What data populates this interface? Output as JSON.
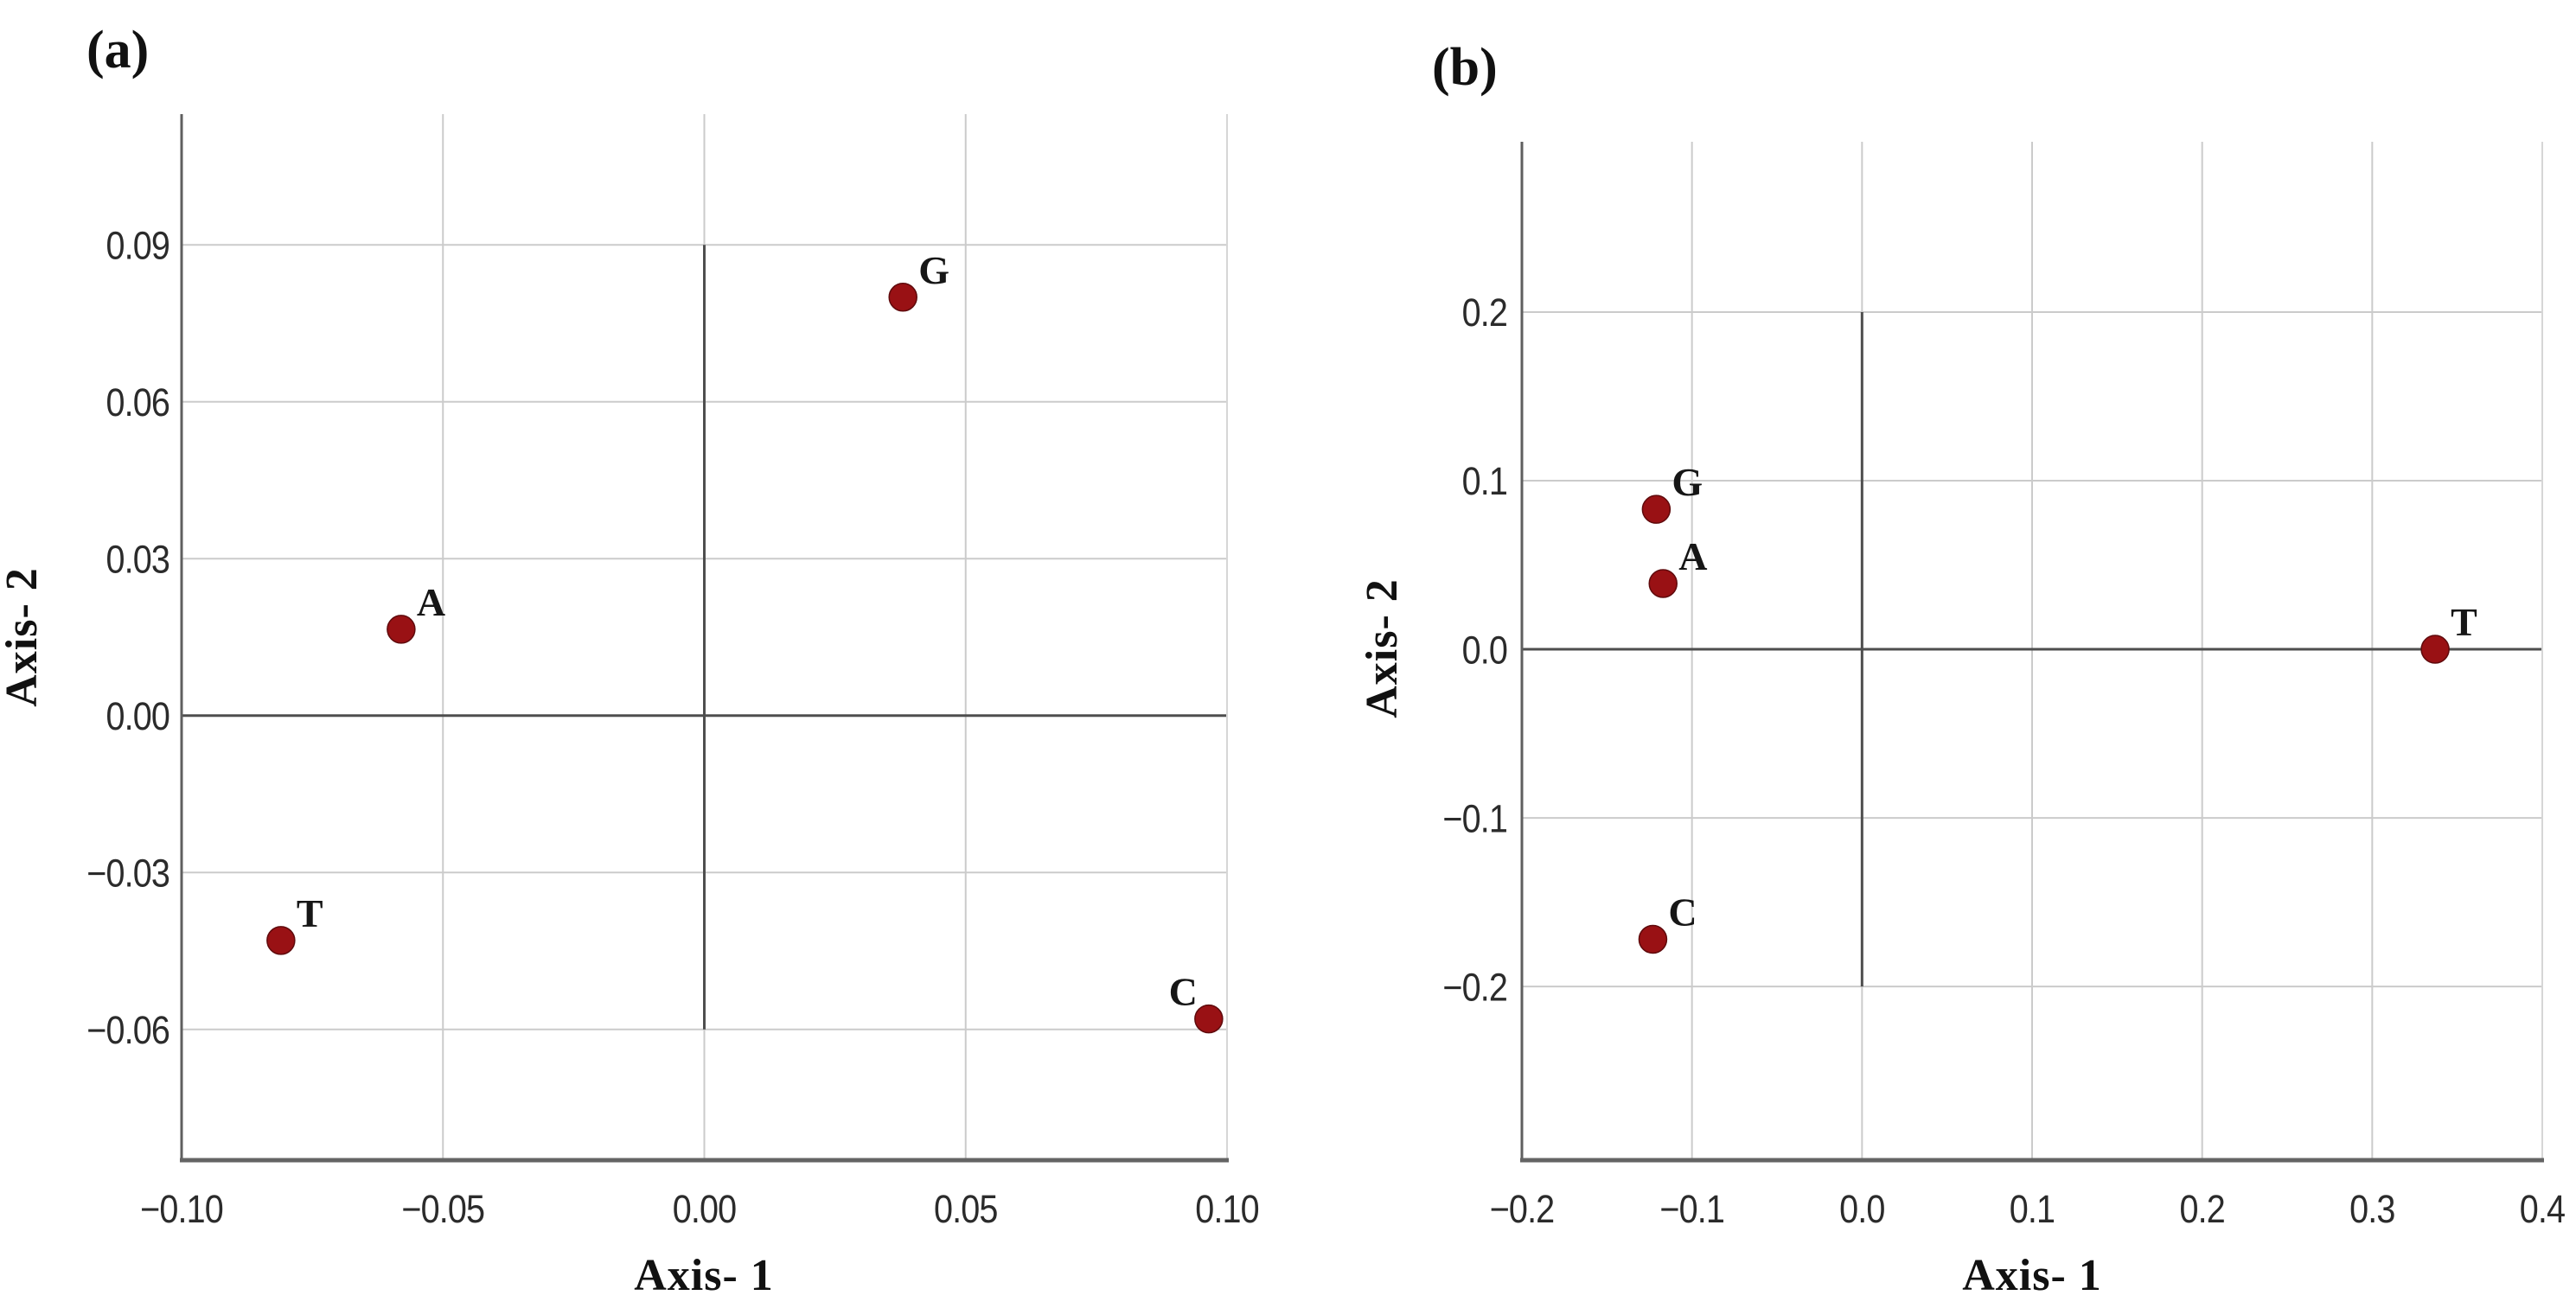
{
  "page": {
    "background": "#ffffff",
    "description": "Two-panel scatter figure of nucleotide positions on Axis-1 vs Axis-2"
  },
  "colors": {
    "marker_fill": "#991114",
    "marker_edge": "#5f0a0c",
    "gridline": "#cbcbcb",
    "frame_light": "#d6d6d6",
    "frame_dark": "#5f5f5f",
    "axis_bottom": "#646464",
    "reference_line": "#4e4e4e",
    "tick_text": "#2b2b2b",
    "label_text": "#111111"
  },
  "chart_data": [
    {
      "type": "scatter",
      "panel_tag": "(a)",
      "title": "",
      "xlabel": "Axis- 1",
      "ylabel": "Axis- 2",
      "xlim": [
        -0.1,
        0.1
      ],
      "ylim": [
        -0.085,
        0.115
      ],
      "grid": true,
      "legend": "none",
      "xticks": [
        {
          "v": -0.1,
          "label": "−0.10"
        },
        {
          "v": -0.05,
          "label": "−0.05"
        },
        {
          "v": 0.0,
          "label": "0.00"
        },
        {
          "v": 0.05,
          "label": "0.05"
        },
        {
          "v": 0.1,
          "label": "0.10"
        }
      ],
      "yticks": [
        {
          "v": 0.09,
          "label": "0.09"
        },
        {
          "v": 0.06,
          "label": "0.06"
        },
        {
          "v": 0.03,
          "label": "0.03"
        },
        {
          "v": 0.0,
          "label": "0.00"
        },
        {
          "v": -0.03,
          "label": "−0.03"
        },
        {
          "v": -0.06,
          "label": "−0.06"
        }
      ],
      "reference_line_x": {
        "x": 0.0,
        "y_from": 0.09,
        "y_to": -0.06
      },
      "reference_line_y": {
        "y": 0.0
      },
      "points": [
        {
          "label": "G",
          "x": 0.038,
          "y": 0.08,
          "label_pos": "up-right"
        },
        {
          "label": "A",
          "x": -0.058,
          "y": 0.0165,
          "label_pos": "up-right"
        },
        {
          "label": "T",
          "x": -0.081,
          "y": -0.043,
          "label_pos": "up-right"
        },
        {
          "label": "C",
          "x": 0.0965,
          "y": -0.058,
          "label_pos": "up-left"
        }
      ]
    },
    {
      "type": "scatter",
      "panel_tag": "(b)",
      "title": "",
      "xlabel": "Axis- 1",
      "ylabel": "Axis- 2",
      "xlim": [
        -0.2,
        0.4
      ],
      "ylim": [
        -0.303,
        0.301
      ],
      "grid": true,
      "legend": "none",
      "xticks": [
        {
          "v": -0.2,
          "label": "−0.2"
        },
        {
          "v": -0.1,
          "label": "−0.1"
        },
        {
          "v": 0.0,
          "label": "0.0"
        },
        {
          "v": 0.1,
          "label": "0.1"
        },
        {
          "v": 0.2,
          "label": "0.2"
        },
        {
          "v": 0.3,
          "label": "0.3"
        },
        {
          "v": 0.4,
          "label": "0.4"
        }
      ],
      "yticks": [
        {
          "v": 0.2,
          "label": "0.2"
        },
        {
          "v": 0.1,
          "label": "0.1"
        },
        {
          "v": 0.0,
          "label": "0.0"
        },
        {
          "v": -0.1,
          "label": "−0.1"
        },
        {
          "v": -0.2,
          "label": "−0.2"
        }
      ],
      "reference_line_x": {
        "x": 0.0,
        "y_from": 0.2,
        "y_to": -0.2
      },
      "reference_line_y": {
        "y": 0.0
      },
      "points": [
        {
          "label": "G",
          "x": -0.121,
          "y": 0.083,
          "label_pos": "up-right"
        },
        {
          "label": "A",
          "x": -0.117,
          "y": 0.039,
          "label_pos": "up-right"
        },
        {
          "label": "T",
          "x": 0.337,
          "y": 0.0,
          "label_pos": "up-right"
        },
        {
          "label": "C",
          "x": -0.123,
          "y": -0.172,
          "label_pos": "up-right"
        }
      ]
    }
  ]
}
